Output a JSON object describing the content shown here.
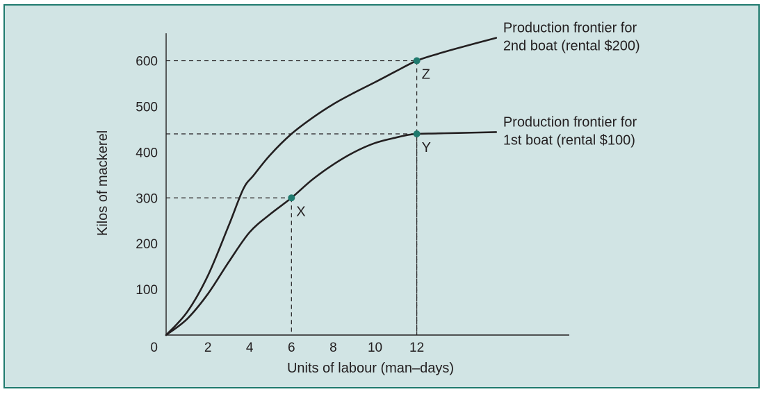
{
  "colors": {
    "background": "#d1e4e4",
    "frame": "#1f7a6e",
    "curve": "#231f20",
    "point": "#1f7a6e"
  },
  "chart_data": {
    "type": "line",
    "title": "",
    "xlabel": "Units of labour (man–days)",
    "ylabel": "Kilos of mackerel",
    "x_ticks": [
      "0",
      "2",
      "4",
      "6",
      "8",
      "10",
      "12"
    ],
    "x_tick_values": [
      0,
      2,
      4,
      6,
      8,
      10,
      12
    ],
    "y_ticks": [
      "100",
      "200",
      "300",
      "400",
      "500",
      "600"
    ],
    "y_tick_values": [
      100,
      200,
      300,
      400,
      500,
      600
    ],
    "xlim": [
      0,
      19.3
    ],
    "ylim": [
      0,
      660
    ],
    "grid": false,
    "series": [
      {
        "name": "Production frontier for 1st boat (rental $100)",
        "label_lines": [
          "Production frontier for",
          "1st boat (rental $100)"
        ],
        "x": [
          0,
          1,
          2,
          3,
          4,
          5,
          6,
          7,
          8,
          9,
          10,
          11,
          11.5,
          12,
          13,
          14,
          15.8
        ],
        "y": [
          0,
          35,
          90,
          160,
          225,
          265,
          300,
          340,
          373,
          400,
          420,
          432,
          437,
          440,
          441,
          442,
          444
        ]
      },
      {
        "name": "Production frontier for 2nd boat (rental $200)",
        "label_lines": [
          "Production frontier for",
          "2nd boat (rental $200)"
        ],
        "x": [
          0,
          1,
          2,
          3,
          3.7,
          4.2,
          5,
          6,
          7,
          8,
          9,
          10,
          11,
          12,
          13,
          14,
          15.8
        ],
        "y": [
          0,
          50,
          130,
          240,
          320,
          350,
          395,
          440,
          475,
          505,
          530,
          553,
          577,
          600,
          615,
          628,
          650
        ]
      }
    ],
    "points": [
      {
        "label": "X",
        "x": 6,
        "y": 300
      },
      {
        "label": "Y",
        "x": 12,
        "y": 440
      },
      {
        "label": "Z",
        "x": 12,
        "y": 600
      }
    ]
  }
}
